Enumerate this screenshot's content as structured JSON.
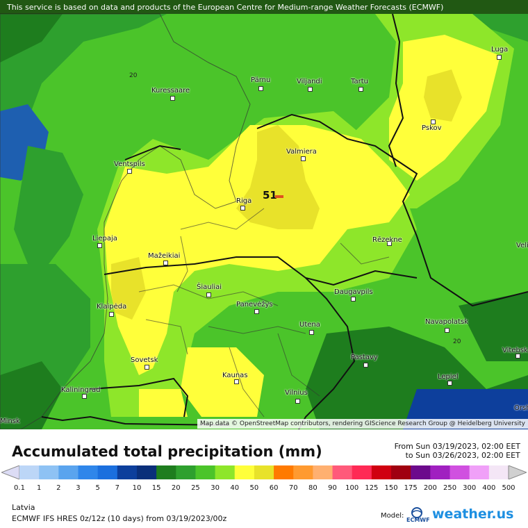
{
  "header": {
    "notice": "This service is based on data and products of the European Centre for Medium-range Weather Forecasts (ECMWF)"
  },
  "map": {
    "attribution": "Map data © OpenStreetMap contributors, rendering GIScience Research Group @ Heidelberg University",
    "max_value": "51",
    "contour_label": "20",
    "cities": [
      {
        "name": "Luga"
      },
      {
        "name": "Pärnu"
      },
      {
        "name": "Viljandi"
      },
      {
        "name": "Tartu"
      },
      {
        "name": "Kuressaare"
      },
      {
        "name": "Pskov"
      },
      {
        "name": "Valmiera"
      },
      {
        "name": "Ventspils"
      },
      {
        "name": "Riga"
      },
      {
        "name": "Liepaja"
      },
      {
        "name": "Mažeikiai"
      },
      {
        "name": "Rēzekne"
      },
      {
        "name": "Šiauliai"
      },
      {
        "name": "Klaipėda"
      },
      {
        "name": "Panevėžys"
      },
      {
        "name": "Daugavpils"
      },
      {
        "name": "Utena"
      },
      {
        "name": "Navapolatsk"
      },
      {
        "name": "Vitebsk"
      },
      {
        "name": "Sovetsk"
      },
      {
        "name": "Pastavy"
      },
      {
        "name": "Kaunas"
      },
      {
        "name": "Lepiel"
      },
      {
        "name": "Kaliningrad"
      },
      {
        "name": "Vilnius"
      },
      {
        "name": "Orsha"
      },
      {
        "name": "Velizh"
      },
      {
        "name": "Minsk"
      }
    ]
  },
  "legend": {
    "title": "Accumulated total precipitation (mm)",
    "from": "From Sun 03/19/2023, 02:00 EET",
    "to": "to Sun 03/26/2023, 02:00 EET",
    "ticks": [
      "0.1",
      "1",
      "2",
      "3",
      "5",
      "7",
      "10",
      "15",
      "20",
      "25",
      "30",
      "40",
      "50",
      "60",
      "70",
      "80",
      "90",
      "100",
      "125",
      "150",
      "175",
      "200",
      "250",
      "300",
      "400",
      "500"
    ],
    "colors": [
      "#dcdcf5",
      "#bcd6f7",
      "#8ec2f4",
      "#5aa4ee",
      "#2f86ea",
      "#1b6fde",
      "#0d3f9c",
      "#0a2f7a",
      "#1e7d1e",
      "#2ea02e",
      "#4bc42a",
      "#8ee62a",
      "#ffff3a",
      "#e8e22a",
      "#ff7a00",
      "#ff9a30",
      "#ffb070",
      "#ff5a7a",
      "#ff2a55",
      "#d00010",
      "#a00010",
      "#6c0a8c",
      "#a020c0",
      "#d050e0",
      "#f0a0f8",
      "#f4e6f6",
      "#d0d0d0"
    ]
  },
  "footer": {
    "region": "Latvia",
    "model": "ECMWF IFS HRES 0z/12z (10 days) from 03/19/2023/00z",
    "model_label": "Model:",
    "ecmwf": "ECMWF",
    "brand": "weather.us"
  }
}
